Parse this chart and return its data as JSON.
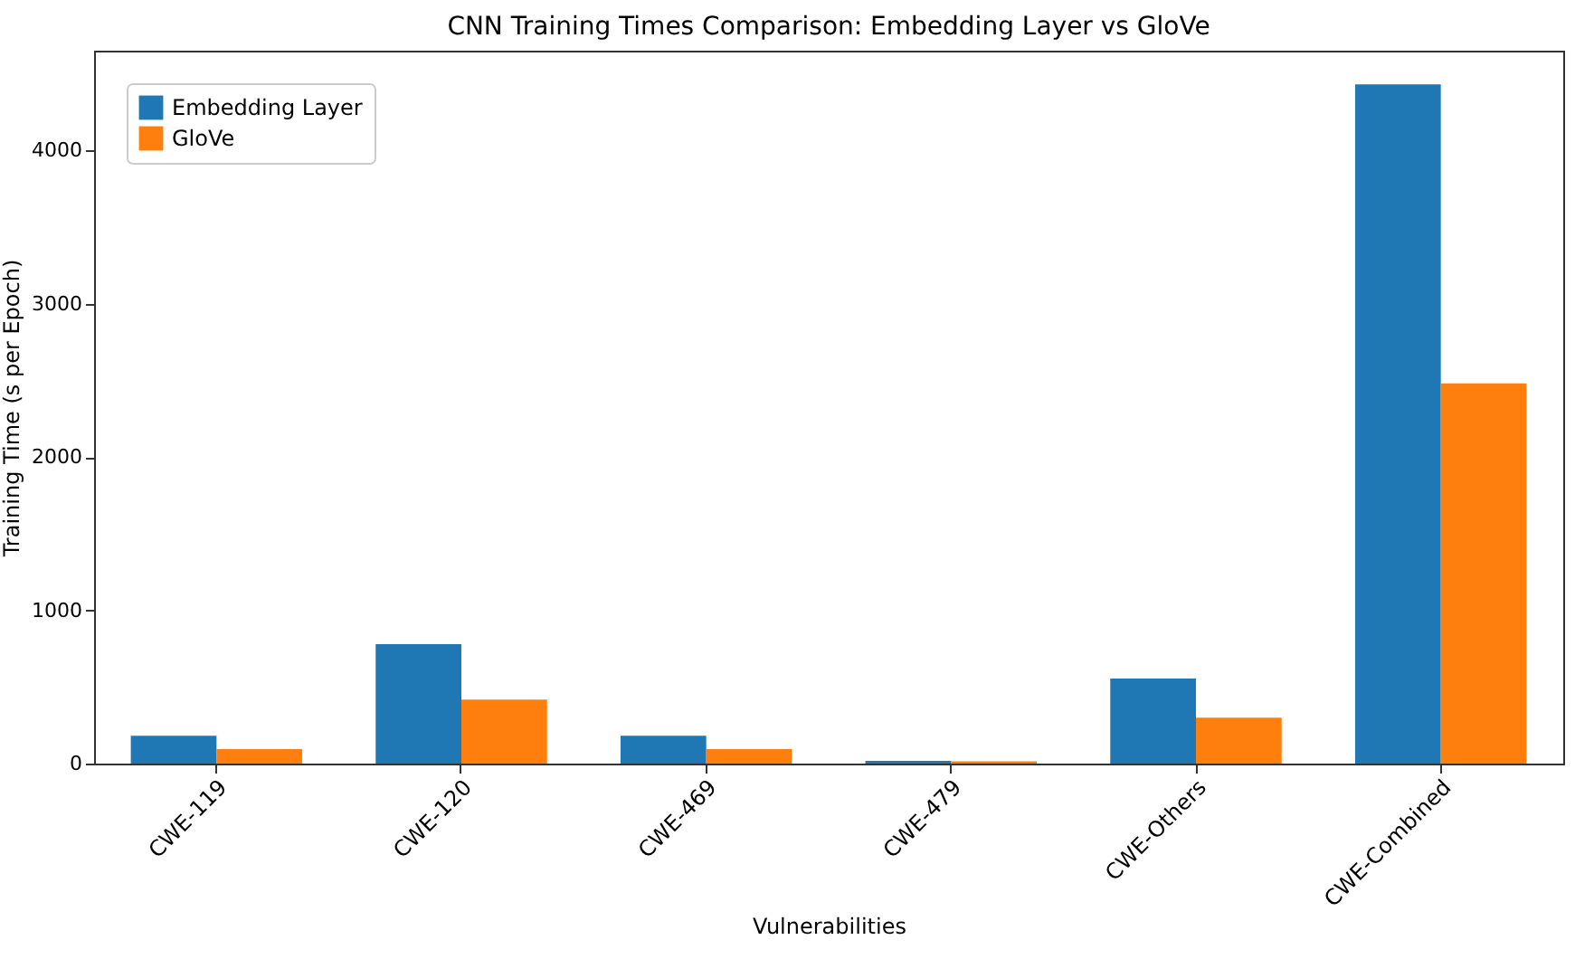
{
  "chart_data": {
    "type": "bar",
    "title": "CNN Training Times Comparison: Embedding Layer vs GloVe",
    "xlabel": "Vulnerabilities",
    "ylabel": "Training Time (s per Epoch)",
    "categories": [
      "CWE-119",
      "CWE-120",
      "CWE-469",
      "CWE-479",
      "CWE-Others",
      "CWE-Combined"
    ],
    "series": [
      {
        "name": "Embedding Layer",
        "color": "#1f77b4",
        "values": [
          182,
          779,
          182,
          17,
          555,
          4430
        ]
      },
      {
        "name": "GloVe",
        "color": "#ff7f0e",
        "values": [
          94,
          418,
          94,
          15,
          300,
          2480
        ]
      }
    ],
    "ylim": [
      0,
      4650
    ],
    "yticks": [
      0,
      1000,
      2000,
      3000,
      4000
    ],
    "grid": false,
    "legend": "top left"
  }
}
